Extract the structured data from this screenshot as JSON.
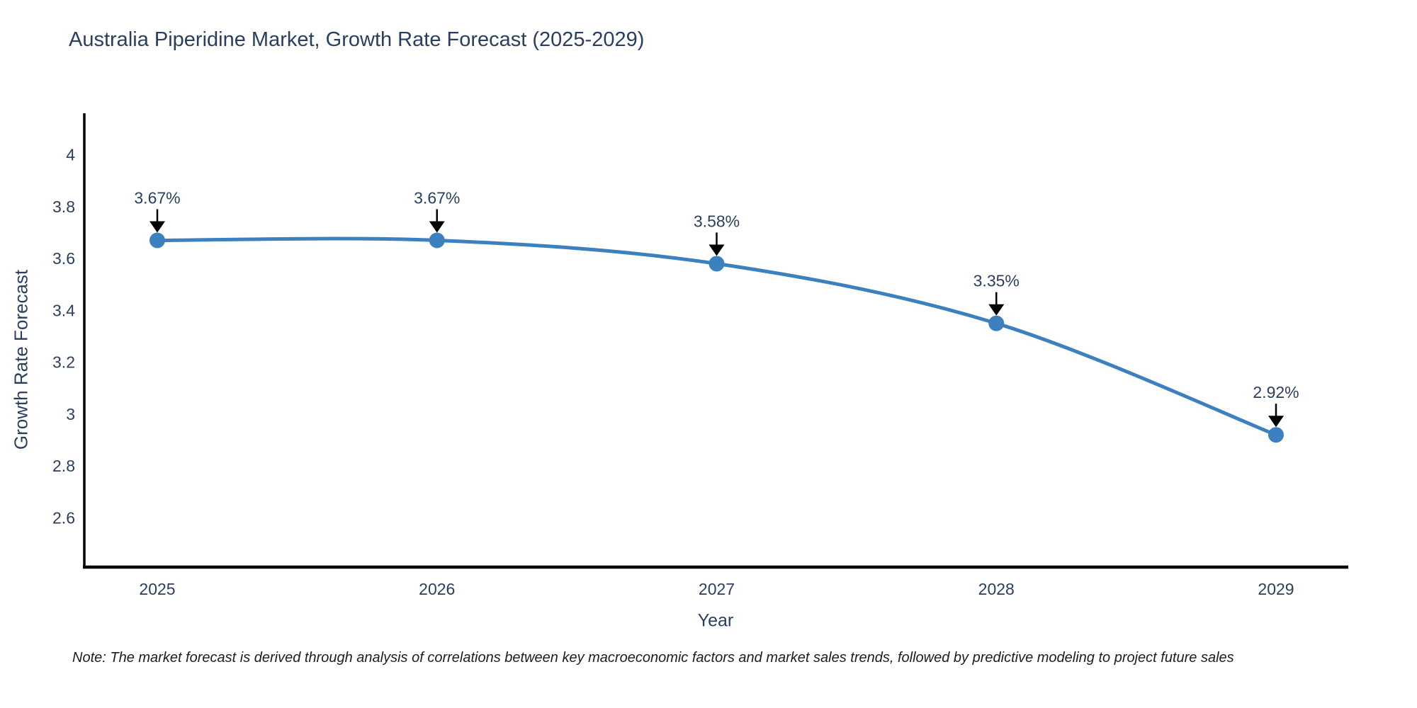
{
  "chart": {
    "title": "Australia Piperidine Market, Growth Rate Forecast (2025-2029)",
    "xlabel": "Year",
    "ylabel": "Growth Rate Forecast"
  },
  "note": {
    "text": "Note: The market forecast is derived through analysis of correlations between key macroeconomic factors and market sales trends, followed by predictive modeling to project future sales"
  },
  "chart_data": {
    "type": "line",
    "title": "Australia Piperidine Market, Growth Rate Forecast (2025-2029)",
    "xlabel": "Year",
    "ylabel": "Growth Rate Forecast",
    "categories": [
      2025,
      2026,
      2027,
      2028,
      2029
    ],
    "values": [
      3.67,
      3.67,
      3.58,
      3.35,
      2.92
    ],
    "point_labels": [
      "3.67%",
      "3.67%",
      "3.58%",
      "3.35%",
      "2.92%"
    ],
    "yticks": [
      4,
      3.8,
      3.6,
      3.4,
      3.2,
      3,
      2.8,
      2.6
    ],
    "ylim": [
      2.41,
      4.16
    ],
    "line_shape": "spline",
    "grid": false,
    "legend": false,
    "markers": true,
    "annotation_style": "value-above-with-down-arrow",
    "colors": {
      "line": "#3d80c0",
      "marker": "#3d80c0",
      "axis": "#000000",
      "text": "#2a3f5f",
      "annotation_arrow": "#000000"
    }
  }
}
